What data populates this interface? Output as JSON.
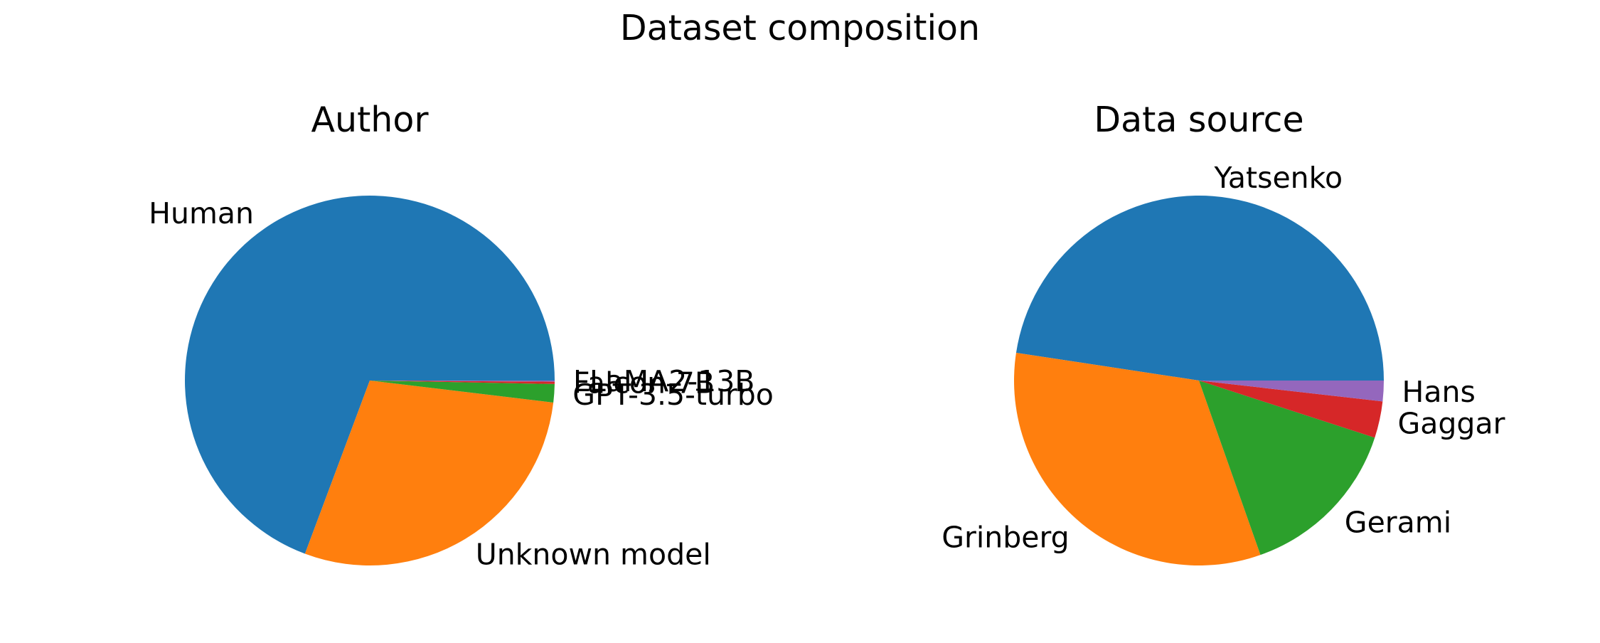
{
  "figure": {
    "title": "Dataset composition"
  },
  "colors": [
    "#1f77b4",
    "#ff7f0e",
    "#2ca02c",
    "#d62728",
    "#9467bd"
  ],
  "chart_data": [
    {
      "type": "pie",
      "title": "Author",
      "labels": [
        "Human",
        "Unknown model",
        "GPT-3.5-turbo",
        "Falcon-7B",
        "LLaMA2-13B"
      ],
      "values": [
        69.3,
        28.8,
        1.6,
        0.2,
        0.1
      ],
      "unit": "percent",
      "start_angle_deg": 0,
      "direction": "counterclockwise"
    },
    {
      "type": "pie",
      "title": "Data source",
      "labels": [
        "Yatsenko",
        "Grinberg",
        "Gerami",
        "Gaggar",
        "Hans"
      ],
      "values": [
        47.6,
        32.8,
        14.6,
        3.2,
        1.8
      ],
      "unit": "percent",
      "start_angle_deg": 0,
      "direction": "counterclockwise"
    }
  ]
}
